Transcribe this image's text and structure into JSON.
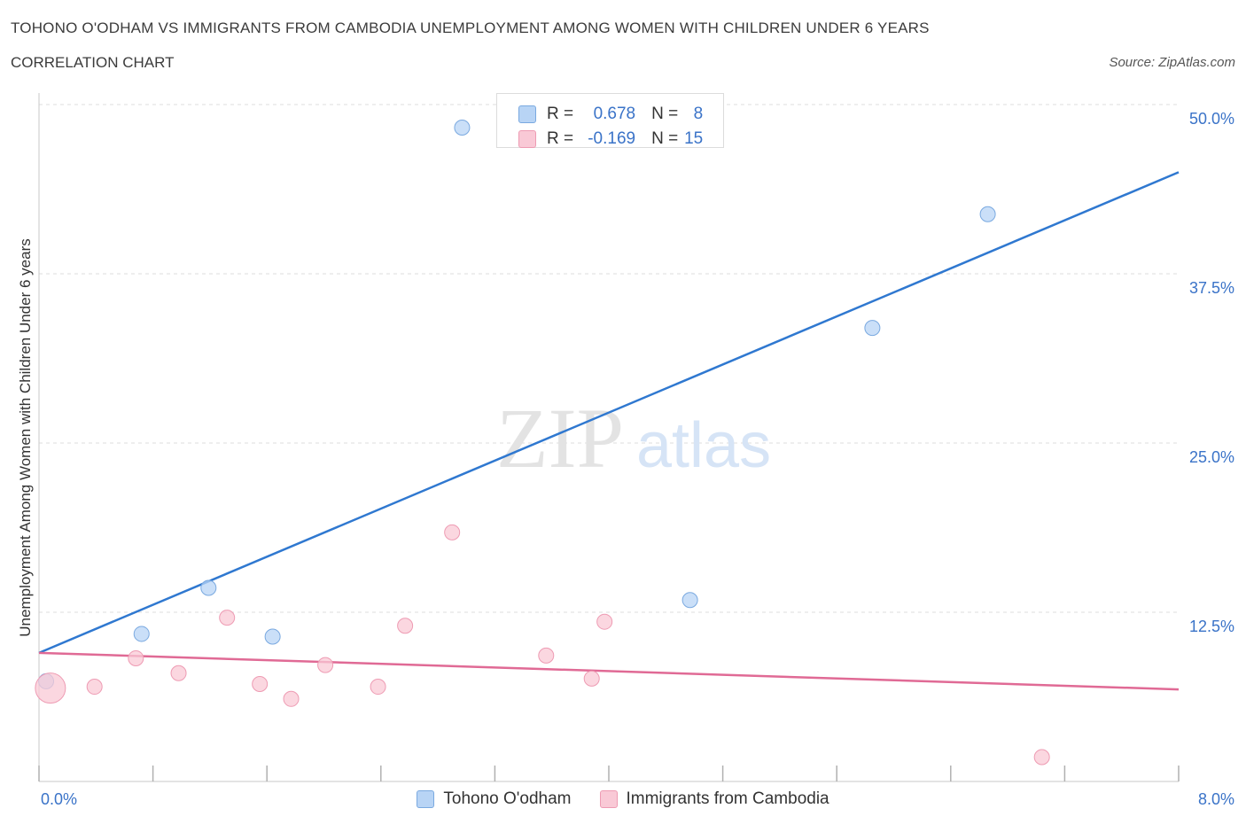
{
  "title": "TOHONO O'ODHAM VS IMMIGRANTS FROM CAMBODIA UNEMPLOYMENT AMONG WOMEN WITH CHILDREN UNDER 6 YEARS",
  "subtitle": "CORRELATION CHART",
  "source": "Source: ZipAtlas.com",
  "watermark": {
    "zip": "ZIP",
    "atlas": "atlas"
  },
  "stats": {
    "r_label": "R =",
    "n_label": "N =",
    "series1": {
      "r": "0.678",
      "n": "8"
    },
    "series2": {
      "r": "-0.169",
      "n": "15"
    }
  },
  "colors": {
    "series1_fill": "#b8d4f5",
    "series1_stroke": "#7aa9e0",
    "series1_line": "#2f78d0",
    "series2_fill": "#f9c9d6",
    "series2_stroke": "#ee9bb3",
    "series2_line": "#e06a95",
    "axis_label": "#3a73c8"
  },
  "chart_data": {
    "type": "scatter",
    "title": "TOHONO O'ODHAM VS IMMIGRANTS FROM CAMBODIA UNEMPLOYMENT AMONG WOMEN WITH CHILDREN UNDER 6 YEARS",
    "xlabel": "",
    "ylabel": "Unemployment Among Women with Children Under 6 years",
    "xlim": [
      0,
      8
    ],
    "ylim": [
      0,
      50
    ],
    "x_tick_labels": [
      "0.0%",
      "8.0%"
    ],
    "y_ticks": [
      12.5,
      25.0,
      37.5,
      50.0
    ],
    "y_tick_labels": [
      "12.5%",
      "25.0%",
      "37.5%",
      "50.0%"
    ],
    "grid": true,
    "legend": "bottom-center",
    "series": [
      {
        "name": "Tohono O'odham",
        "points": [
          {
            "x": 0.05,
            "y": 7.4
          },
          {
            "x": 0.72,
            "y": 10.9
          },
          {
            "x": 1.19,
            "y": 14.3
          },
          {
            "x": 1.64,
            "y": 10.7
          },
          {
            "x": 2.97,
            "y": 48.3
          },
          {
            "x": 4.57,
            "y": 13.4
          },
          {
            "x": 5.85,
            "y": 33.5
          },
          {
            "x": 6.66,
            "y": 41.9
          }
        ],
        "trend": {
          "x": [
            0.0,
            8.0
          ],
          "y": [
            9.5,
            45.0
          ]
        }
      },
      {
        "name": "Immigrants from Cambodia",
        "points": [
          {
            "x": 0.08,
            "y": 6.9,
            "large": true
          },
          {
            "x": 0.39,
            "y": 7.0
          },
          {
            "x": 0.68,
            "y": 9.1
          },
          {
            "x": 0.98,
            "y": 8.0
          },
          {
            "x": 1.32,
            "y": 12.1
          },
          {
            "x": 1.55,
            "y": 7.2
          },
          {
            "x": 1.77,
            "y": 6.1
          },
          {
            "x": 2.01,
            "y": 8.6
          },
          {
            "x": 2.38,
            "y": 7.0
          },
          {
            "x": 2.57,
            "y": 11.5
          },
          {
            "x": 2.9,
            "y": 18.4
          },
          {
            "x": 3.56,
            "y": 9.3
          },
          {
            "x": 3.88,
            "y": 7.6
          },
          {
            "x": 3.97,
            "y": 11.8
          },
          {
            "x": 7.04,
            "y": 1.8
          }
        ],
        "trend": {
          "x": [
            0.0,
            8.0
          ],
          "y": [
            9.5,
            6.8
          ]
        }
      }
    ]
  }
}
